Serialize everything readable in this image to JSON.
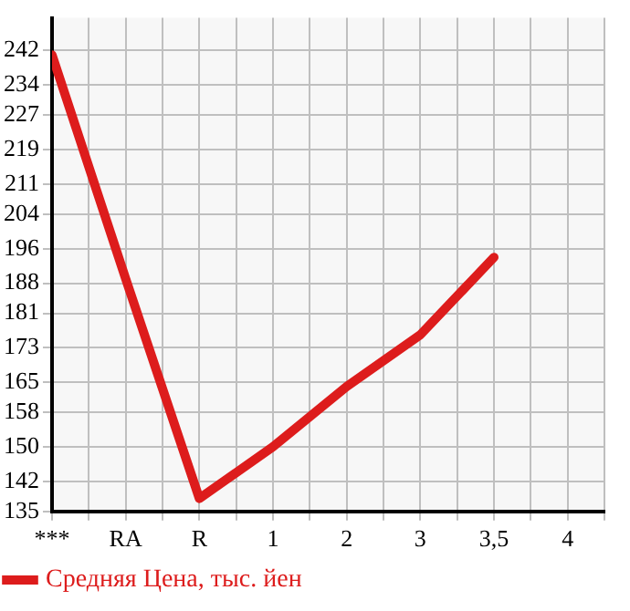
{
  "chart_data": {
    "type": "line",
    "categories": [
      "***",
      "RA",
      "R",
      "1",
      "2",
      "3",
      "3,5",
      "4"
    ],
    "series": [
      {
        "name": "Средняя Цена, тыс. йен",
        "color": "#dd1c1c",
        "values": [
          241,
          189,
          138,
          150,
          164,
          176,
          194,
          null
        ]
      }
    ],
    "ylim": [
      135,
      249.6
    ],
    "yticks": [
      135,
      142,
      150,
      158,
      165,
      173,
      181,
      188,
      196,
      204,
      211,
      219,
      227,
      234,
      242
    ],
    "grid": true,
    "legend": "bottom left",
    "marker": "none",
    "line_style": "solid"
  }
}
